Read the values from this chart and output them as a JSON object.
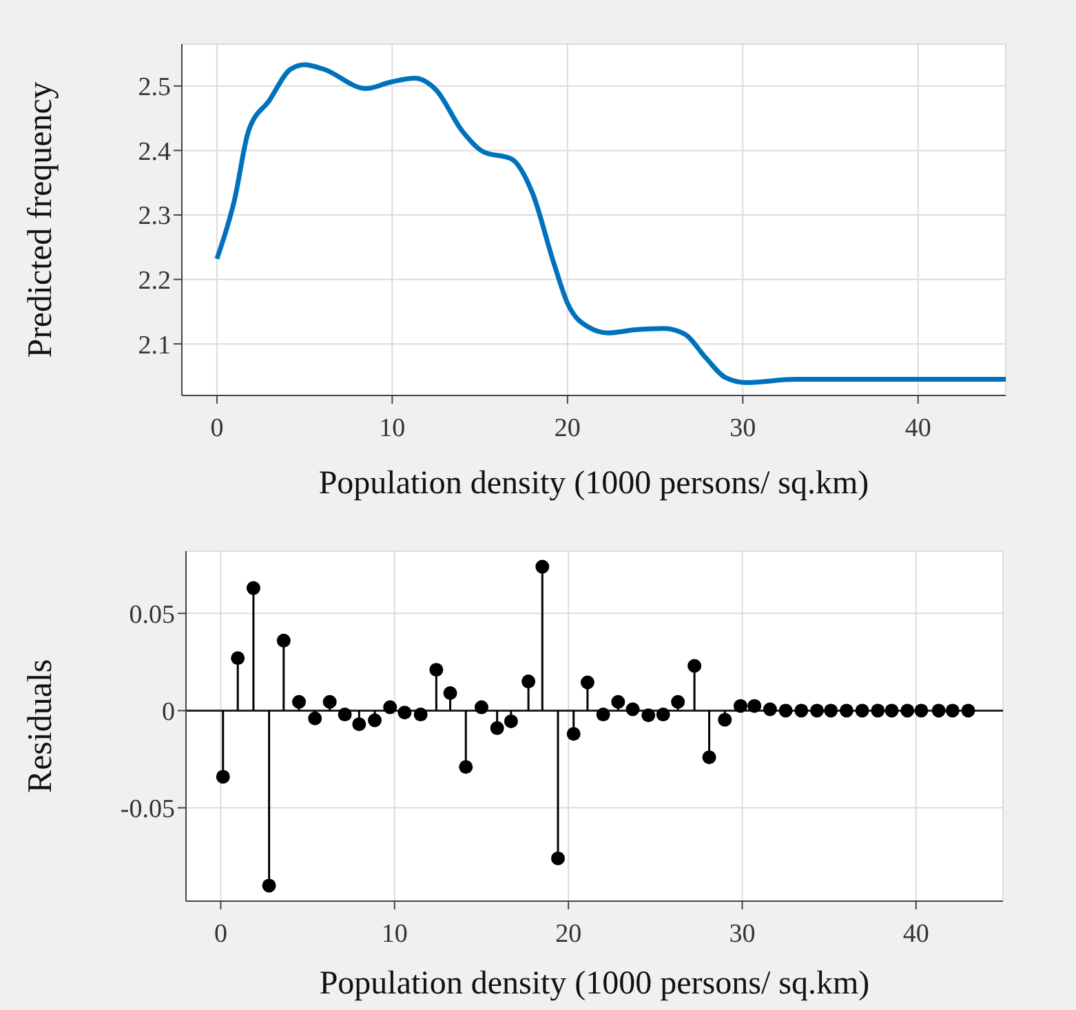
{
  "chart_data": [
    {
      "type": "line",
      "xlabel": "Population density (1000 persons/ sq.km)",
      "ylabel": "Predicted frequency",
      "color": "#0072bd",
      "x": [
        0,
        1,
        1.8,
        3,
        4.2,
        5,
        6.1,
        8.5,
        9.9,
        11.3,
        12.5,
        14,
        15.2,
        16.8,
        18,
        19.2,
        20,
        21.2,
        22.3,
        23.9,
        25.5,
        26.7,
        27.9,
        29,
        30.2,
        33,
        45
      ],
      "values": [
        2.232,
        2.323,
        2.43,
        2.478,
        2.526,
        2.533,
        2.526,
        2.496,
        2.506,
        2.512,
        2.494,
        2.43,
        2.398,
        2.387,
        2.334,
        2.227,
        2.163,
        2.126,
        2.117,
        2.122,
        2.124,
        2.115,
        2.078,
        2.048,
        2.04,
        2.045,
        2.045
      ],
      "xlim": [
        -2,
        45
      ],
      "ylim": [
        2.02,
        2.565
      ],
      "xticks": [
        0,
        10,
        20,
        30,
        40
      ],
      "yticks": [
        2.1,
        2.2,
        2.3,
        2.4,
        2.5
      ],
      "grid": true
    },
    {
      "type": "lollipop",
      "xlabel": "Population density (1000 persons/ sq.km)",
      "ylabel": "Residuals",
      "color": "#000000",
      "marker": "circle",
      "x": [
        0.13,
        0.98,
        1.88,
        2.78,
        3.62,
        4.5,
        5.42,
        6.27,
        7.14,
        7.96,
        8.86,
        9.74,
        10.58,
        11.5,
        12.4,
        13.2,
        14.1,
        15.0,
        15.9,
        16.7,
        17.7,
        18.5,
        19.4,
        20.3,
        21.1,
        22.0,
        22.86,
        23.7,
        24.6,
        25.45,
        26.3,
        27.25,
        28.1,
        29.0,
        29.9,
        30.7,
        31.6,
        32.5,
        33.4,
        34.3,
        35.1,
        36.0,
        36.9,
        37.8,
        38.6,
        39.5,
        40.3,
        41.3,
        42.1,
        43.0
      ],
      "values": [
        -0.034,
        0.027,
        0.063,
        -0.09,
        0.036,
        0.0045,
        -0.004,
        0.0045,
        -0.002,
        -0.007,
        -0.005,
        0.0017,
        -0.001,
        -0.002,
        0.021,
        0.009,
        -0.029,
        0.0017,
        -0.009,
        -0.0055,
        0.015,
        0.074,
        -0.076,
        -0.012,
        0.0145,
        -0.002,
        0.0045,
        0.0007,
        -0.0024,
        -0.002,
        0.0045,
        0.023,
        -0.024,
        -0.0047,
        0.0024,
        0.0024,
        0.0007,
        0,
        0,
        0,
        0,
        0,
        0,
        0,
        0,
        0,
        0,
        0,
        0,
        0
      ],
      "xlim": [
        -2,
        45
      ],
      "ylim": [
        -0.098,
        0.082
      ],
      "xticks": [
        0,
        10,
        20,
        30,
        40
      ],
      "yticks": [
        -0.05,
        0,
        0.05
      ],
      "grid": true,
      "ref_lines": [
        {
          "axis": "y",
          "value": 0
        }
      ]
    }
  ]
}
